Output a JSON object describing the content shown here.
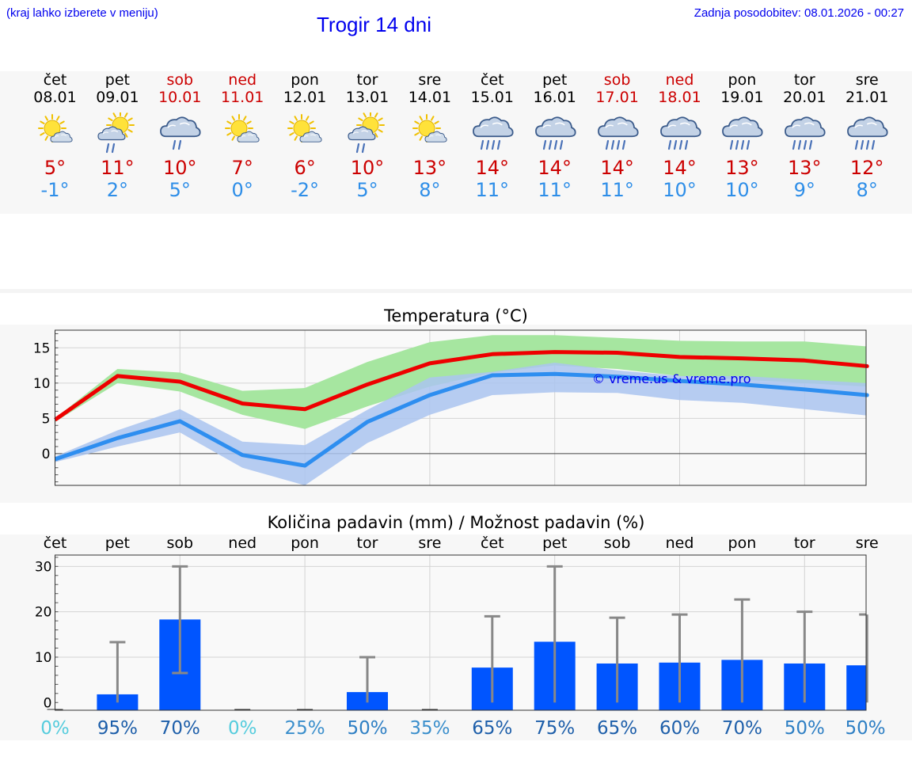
{
  "header": {
    "hint": "(kraj lahko izberete v meniju)",
    "title": "Trogir 14 dni",
    "updated": "Zadnja posodobitev: 08.01.2026 - 00:27"
  },
  "days": [
    {
      "name": "čet",
      "date": "08.01",
      "weekend": false,
      "icon": "sun-cloud-icon",
      "tmax": "5°",
      "tmin": "-1°"
    },
    {
      "name": "pet",
      "date": "09.01",
      "weekend": false,
      "icon": "sun-cloud-rain-icon",
      "tmax": "11°",
      "tmin": "2°"
    },
    {
      "name": "sob",
      "date": "10.01",
      "weekend": true,
      "icon": "cloud-rain-icon",
      "tmax": "10°",
      "tmin": "5°"
    },
    {
      "name": "ned",
      "date": "11.01",
      "weekend": true,
      "icon": "sun-cloud-icon",
      "tmax": "7°",
      "tmin": "0°"
    },
    {
      "name": "pon",
      "date": "12.01",
      "weekend": false,
      "icon": "sun-cloud-icon",
      "tmax": "6°",
      "tmin": "-2°"
    },
    {
      "name": "tor",
      "date": "13.01",
      "weekend": false,
      "icon": "sun-cloud-rain-icon",
      "tmax": "10°",
      "tmin": "5°"
    },
    {
      "name": "sre",
      "date": "14.01",
      "weekend": false,
      "icon": "sun-cloud-icon",
      "tmax": "13°",
      "tmin": "8°"
    },
    {
      "name": "čet",
      "date": "15.01",
      "weekend": false,
      "icon": "cloud-heavy-rain-icon",
      "tmax": "14°",
      "tmin": "11°"
    },
    {
      "name": "pet",
      "date": "16.01",
      "weekend": false,
      "icon": "cloud-heavy-rain-icon",
      "tmax": "14°",
      "tmin": "11°"
    },
    {
      "name": "sob",
      "date": "17.01",
      "weekend": true,
      "icon": "cloud-heavy-rain-icon",
      "tmax": "14°",
      "tmin": "11°"
    },
    {
      "name": "ned",
      "date": "18.01",
      "weekend": true,
      "icon": "cloud-heavy-rain-icon",
      "tmax": "14°",
      "tmin": "10°"
    },
    {
      "name": "pon",
      "date": "19.01",
      "weekend": false,
      "icon": "cloud-heavy-rain-icon",
      "tmax": "13°",
      "tmin": "10°"
    },
    {
      "name": "tor",
      "date": "20.01",
      "weekend": false,
      "icon": "cloud-heavy-rain-icon",
      "tmax": "13°",
      "tmin": "9°"
    },
    {
      "name": "sre",
      "date": "21.01",
      "weekend": false,
      "icon": "cloud-heavy-rain-icon",
      "tmax": "12°",
      "tmin": "8°"
    }
  ],
  "colors": {
    "max_line": "#ee0000",
    "max_band": "#a6e6a0",
    "min_line": "#2e8ef0",
    "min_band": "#aac4f0",
    "bar": "#0055ff",
    "whisker": "#888888",
    "weekend": "#cc0000"
  },
  "chart_data": [
    {
      "type": "line",
      "title": "Temperatura (°C)",
      "watermark": "© vreme.us & vreme.pro",
      "ylim": [
        -4.5,
        17.5
      ],
      "yticks": [
        0,
        5,
        10,
        15
      ],
      "series": [
        {
          "name": "max",
          "values": [
            4.8,
            11,
            10.2,
            7.1,
            6.3,
            9.8,
            12.8,
            14.1,
            14.4,
            14.3,
            13.7,
            13.5,
            13.2,
            12.4
          ],
          "low": [
            4.5,
            10,
            8.8,
            5.5,
            3.5,
            6.7,
            9.5,
            11.5,
            12.5,
            12.0,
            11.0,
            10.5,
            10.0,
            9.5
          ],
          "high": [
            5.0,
            12.0,
            11.5,
            8.9,
            9.3,
            13.0,
            15.8,
            16.8,
            16.8,
            16.4,
            16.0,
            15.9,
            15.9,
            15.2
          ]
        },
        {
          "name": "min",
          "values": [
            -0.8,
            2.2,
            4.6,
            -0.2,
            -1.7,
            4.5,
            8.3,
            11.1,
            11.3,
            10.9,
            10.3,
            9.8,
            9.1,
            8.3
          ],
          "low": [
            -1.2,
            1.0,
            3.0,
            -2.0,
            -4.5,
            1.5,
            5.5,
            8.3,
            8.7,
            8.6,
            7.6,
            7.2,
            6.3,
            5.4
          ],
          "high": [
            -0.4,
            3.3,
            6.3,
            1.7,
            1.2,
            6.2,
            10.8,
            11.6,
            12.9,
            11.8,
            11.0,
            11.0,
            10.5,
            10.0
          ]
        }
      ]
    },
    {
      "type": "bar",
      "title": "Količina padavin (mm) / Možnost padavin (%)",
      "categories": [
        "čet",
        "pet",
        "sob",
        "ned",
        "pon",
        "tor",
        "sre",
        "čet",
        "pet",
        "sob",
        "ned",
        "pon",
        "tor",
        "sre"
      ],
      "ylim": [
        -1.7,
        32.5
      ],
      "yticks": [
        0,
        10,
        20,
        30
      ],
      "values": [
        0,
        1.8,
        18.3,
        0,
        0,
        2.3,
        0,
        7.7,
        13.4,
        8.6,
        8.8,
        9.4,
        8.6,
        8.2
      ],
      "err_low": [
        0,
        0,
        6.5,
        0,
        0,
        0,
        0,
        0,
        0,
        0,
        0,
        0,
        0,
        0
      ],
      "err_high": [
        0,
        13.3,
        30,
        0,
        0,
        10,
        0,
        19,
        30,
        18.7,
        19.4,
        22.7,
        20,
        19.4
      ],
      "chance": [
        "0%",
        "95%",
        "70%",
        "0%",
        "25%",
        "50%",
        "35%",
        "65%",
        "75%",
        "65%",
        "60%",
        "70%",
        "50%",
        "50%"
      ],
      "chance_colors": [
        "#55ccdd",
        "#1e5faa",
        "#1e5faa",
        "#55ccdd",
        "#3b8fcc",
        "#2e7fc4",
        "#3b8fcc",
        "#1e5faa",
        "#1e5faa",
        "#1e5faa",
        "#1e5faa",
        "#1e5faa",
        "#2e7fc4",
        "#2e7fc4"
      ]
    }
  ]
}
